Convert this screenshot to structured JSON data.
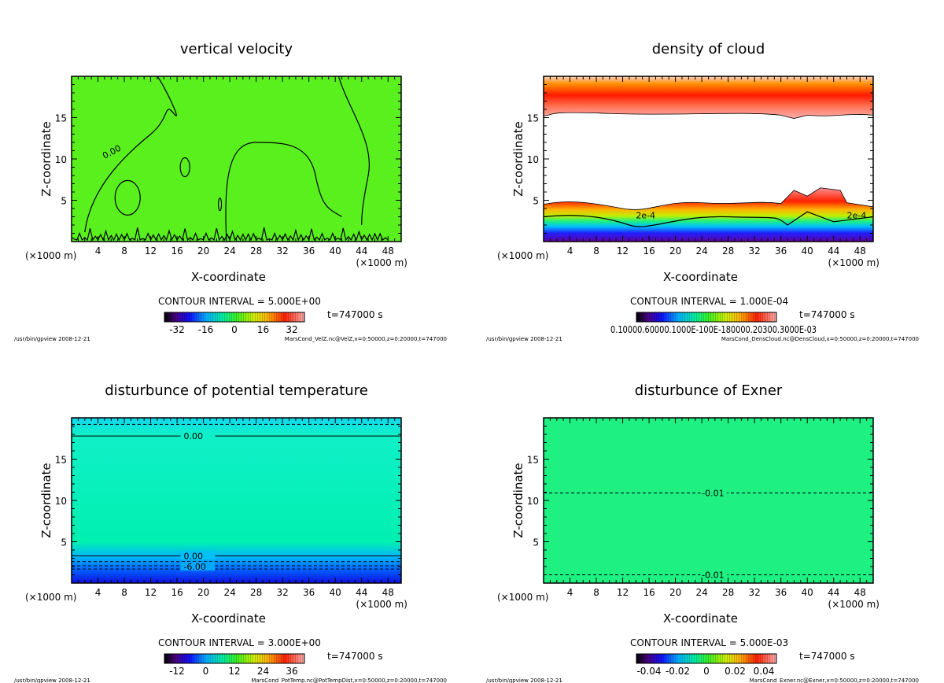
{
  "chart_data": [
    {
      "type": "heatmap",
      "title": "vertical velocity",
      "xlabel": "X-coordinate",
      "ylabel": "Z-coordinate",
      "x_unit_left": "(×1000 m)",
      "x_unit_right": "(×1000 m)",
      "xlim": [
        0,
        50
      ],
      "ylim": [
        0,
        20
      ],
      "xticks": [
        "4",
        "8",
        "12",
        "16",
        "20",
        "24",
        "28",
        "32",
        "36",
        "40",
        "44",
        "48"
      ],
      "yticks": [
        "5",
        "10",
        "15"
      ],
      "contour_interval": "CONTOUR INTERVAL = 5.000E+00",
      "time": "t=747000 s",
      "colorbar_ticks": [
        "-32",
        "-16",
        "0",
        "16",
        "32"
      ],
      "contour_labels": [
        "0.00"
      ],
      "footer_left": "/usr/bin/gpview  2008-12-21",
      "footer_right": "MarsCond_VelZ.nc@VelZ,x=0:50000,z=0:20000,t=747000",
      "background_color": "#5af01e"
    },
    {
      "type": "heatmap",
      "title": "density of cloud",
      "xlabel": "X-coordinate",
      "ylabel": "Z-coordinate",
      "x_unit_left": "(×1000 m)",
      "x_unit_right": "(×1000 m)",
      "xlim": [
        0,
        50
      ],
      "ylim": [
        0,
        20
      ],
      "xticks": [
        "4",
        "8",
        "12",
        "16",
        "20",
        "24",
        "28",
        "32",
        "36",
        "40",
        "44",
        "48"
      ],
      "yticks": [
        "5",
        "10",
        "15"
      ],
      "contour_interval": "CONTOUR INTERVAL = 1.000E-04",
      "time": "t=747000 s",
      "colorbar_ticks_text": "0.10000.60000.1000E-100E-180000.20300.3000E-03",
      "contour_labels": [
        "2e-4",
        "2e-4"
      ],
      "footer_left": "/usr/bin/gpview  2008-12-21",
      "footer_right": "MarsCond_DensCloud.nc@DensCloud,x=0:50000,z=0:20000,t=747000"
    },
    {
      "type": "heatmap",
      "title": "disturbunce of potential temperature",
      "xlabel": "X-coordinate",
      "ylabel": "Z-coordinate",
      "x_unit_left": "(×1000 m)",
      "x_unit_right": "(×1000 m)",
      "xlim": [
        0,
        50
      ],
      "ylim": [
        0,
        20
      ],
      "xticks": [
        "4",
        "8",
        "12",
        "16",
        "20",
        "24",
        "28",
        "32",
        "36",
        "40",
        "44",
        "48"
      ],
      "yticks": [
        "5",
        "10",
        "15"
      ],
      "contour_interval": "CONTOUR INTERVAL = 3.000E+00",
      "time": "t=747000 s",
      "colorbar_ticks": [
        "-12",
        "0",
        "12",
        "24",
        "36"
      ],
      "contour_labels": [
        "0.00",
        "0.00",
        "-6.00"
      ],
      "footer_left": "/usr/bin/gpview  2008-12-21",
      "footer_right": "MarsCond_PotTemp.nc@PotTempDist,x=0:50000,z=0:20000,t=747000"
    },
    {
      "type": "heatmap",
      "title": "disturbunce of Exner",
      "xlabel": "X-coordinate",
      "ylabel": "Z-coordinate",
      "x_unit_left": "(×1000 m)",
      "x_unit_right": "(×1000 m)",
      "xlim": [
        0,
        50
      ],
      "ylim": [
        0,
        20
      ],
      "xticks": [
        "4",
        "8",
        "12",
        "16",
        "20",
        "24",
        "28",
        "32",
        "36",
        "40",
        "44",
        "48"
      ],
      "yticks": [
        "5",
        "10",
        "15"
      ],
      "contour_interval": "CONTOUR INTERVAL = 5.000E-03",
      "time": "t=747000 s",
      "colorbar_ticks": [
        "-0.04",
        "-0.02",
        "0",
        "0.02",
        "0.04"
      ],
      "contour_labels": [
        "-0.01",
        "-0.01"
      ],
      "footer_left": "/usr/bin/gpview  2008-12-21",
      "footer_right": "MarsCond_Exner.nc@Exner,x=0:50000,z=0:20000,t=747000",
      "background_color": "#1ef082"
    }
  ]
}
